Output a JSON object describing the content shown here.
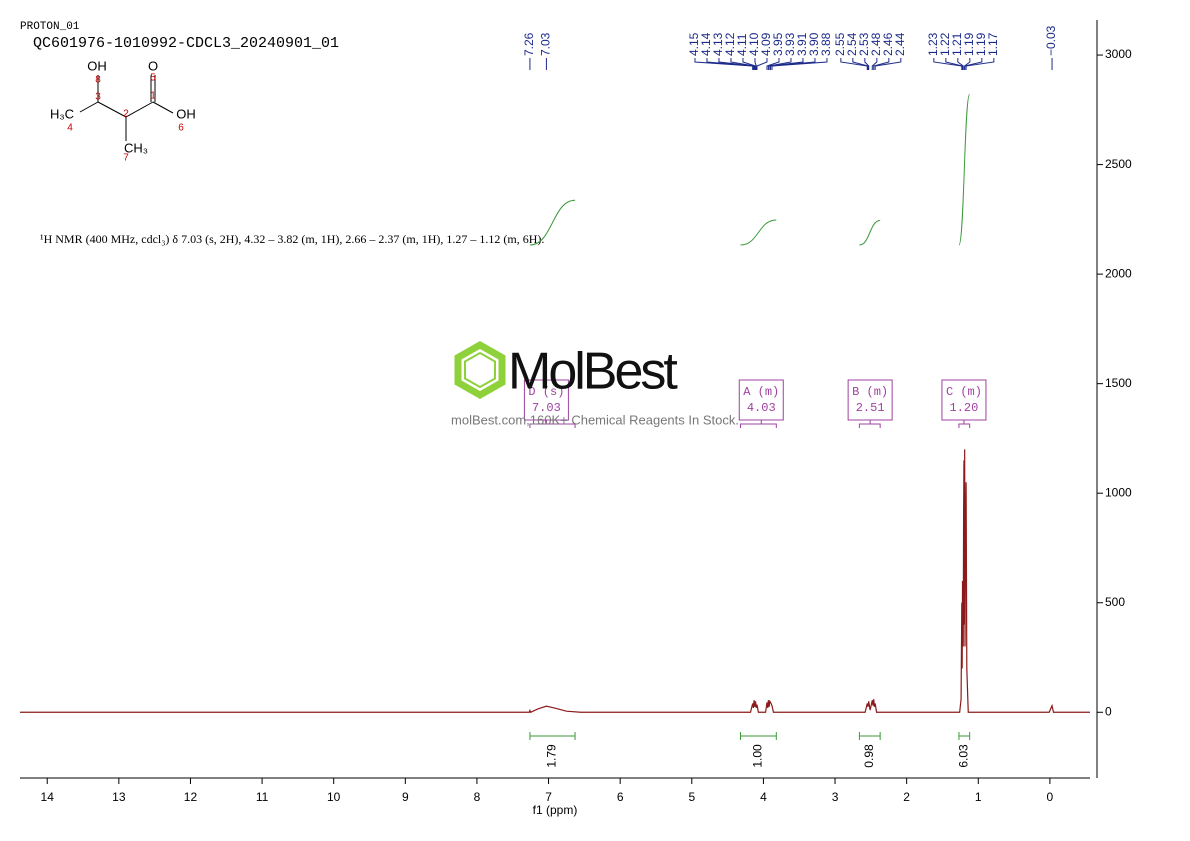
{
  "header": {
    "experiment": "PROTON_01",
    "sample": "QC601976-1010992-CDCL3_20240901_01"
  },
  "structure": {
    "atoms": [
      "OH",
      "O",
      "H₃C",
      "OH",
      "CH₃"
    ],
    "atom_numbers": [
      "8",
      "5",
      "3",
      "1",
      "4",
      "2",
      "6",
      "7"
    ]
  },
  "watermark": {
    "brand": "MolBest",
    "tagline": "molBest.com,160K+ Chemical Reagents In Stock."
  },
  "chart_data": {
    "type": "line",
    "description": "¹H NMR (400 MHz, cdcl₃) δ 7.03 (s, 2H), 4.32 – 3.82 (m, 1H), 2.66 – 2.37 (m, 1H), 1.27 – 1.12 (m, 6H).",
    "x_label": "f1 (ppm)",
    "color": "#8b1a1a",
    "xlim": [
      14.38,
      -0.56
    ],
    "xticks": [
      14,
      13,
      12,
      11,
      10,
      9,
      8,
      7,
      6,
      5,
      4,
      3,
      2,
      1,
      0
    ],
    "ylim": [
      -300,
      3160
    ],
    "yticks": [
      0,
      500,
      1000,
      1500,
      2000,
      2500,
      3000
    ],
    "x": [
      14.38,
      7.4,
      7.27,
      7.26,
      7.25,
      7.15,
      7.03,
      6.9,
      6.75,
      6.55,
      4.18,
      4.15,
      4.14,
      4.13,
      4.12,
      4.11,
      4.1,
      4.09,
      4.07,
      3.97,
      3.95,
      3.94,
      3.93,
      3.92,
      3.91,
      3.9,
      3.88,
      3.86,
      2.58,
      2.55,
      2.54,
      2.53,
      2.51,
      2.48,
      2.47,
      2.46,
      2.45,
      2.44,
      2.42,
      1.26,
      1.24,
      1.23,
      1.225,
      1.22,
      1.21,
      1.205,
      1.2,
      1.195,
      1.19,
      1.185,
      1.18,
      1.17,
      1.16,
      1.14,
      0.01,
      -0.03,
      -0.05,
      -0.56
    ],
    "values": [
      0,
      0,
      0,
      8,
      0,
      15,
      28,
      18,
      5,
      0,
      0,
      40,
      20,
      55,
      25,
      50,
      20,
      35,
      0,
      0,
      45,
      20,
      55,
      25,
      50,
      45,
      30,
      0,
      0,
      40,
      25,
      50,
      10,
      55,
      30,
      60,
      25,
      40,
      0,
      0,
      60,
      500,
      200,
      600,
      300,
      900,
      1150,
      400,
      1200,
      300,
      700,
      1050,
      200,
      0,
      0,
      30,
      0,
      0
    ],
    "peaks": [
      7.26,
      7.03,
      4.15,
      4.14,
      4.13,
      4.12,
      4.11,
      {
        "value": 4.1,
        "label": "4.10"
      },
      4.09,
      3.95,
      3.93,
      3.91,
      {
        "value": 3.9,
        "label": "3.90"
      },
      3.88,
      2.55,
      2.54,
      2.53,
      2.48,
      2.46,
      2.44,
      1.23,
      1.22,
      1.21,
      1.19,
      1.19,
      1.17,
      {
        "value": -0.03,
        "label": "−0.03"
      }
    ],
    "integrals": [
      {
        "value": 1.79,
        "range": [
          7.26,
          6.63
        ]
      },
      {
        "value": {
          "value": 1,
          "label": "1.00"
        },
        "range": [
          4.32,
          3.82
        ]
      },
      {
        "value": 0.98,
        "range": [
          2.66,
          2.37
        ]
      },
      {
        "value": 6.03,
        "range": [
          1.27,
          1.12
        ]
      }
    ],
    "multiplets": [
      {
        "label": "D (s)",
        "shift": 7.03,
        "range": [
          7.26,
          6.63
        ]
      },
      {
        "label": "A (m)",
        "shift": 4.03,
        "range": [
          4.32,
          3.82
        ]
      },
      {
        "label": "B (m)",
        "shift": 2.51,
        "range": [
          2.66,
          2.37
        ]
      },
      {
        "label": "C (m)",
        "shift": {
          "value": 1.2,
          "label": "1.20"
        },
        "range": [
          1.27,
          1.12
        ]
      }
    ]
  }
}
